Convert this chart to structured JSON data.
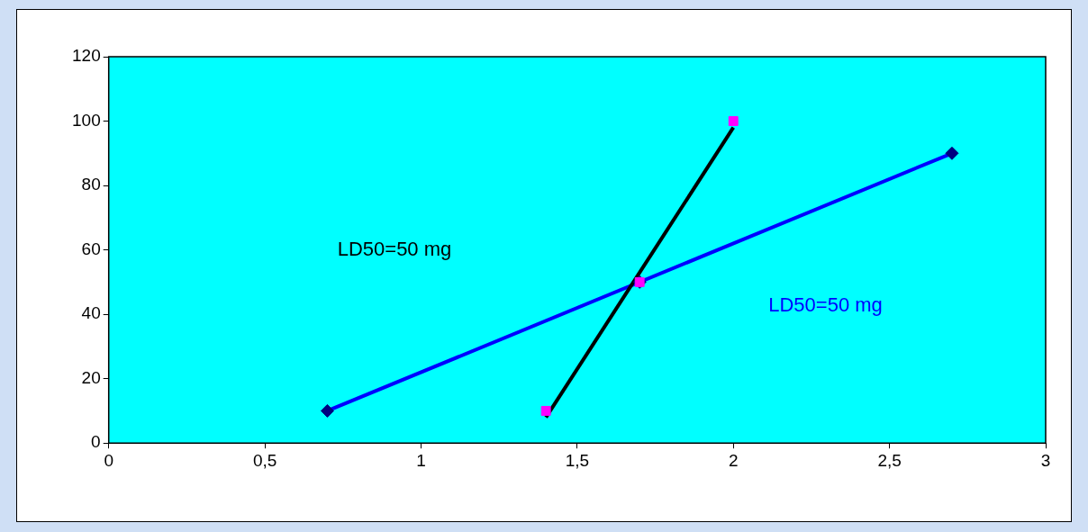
{
  "chart_data": {
    "type": "scatter",
    "xlim": [
      0,
      3
    ],
    "ylim": [
      0,
      120
    ],
    "xticks": [
      0,
      {
        "value": 0.5,
        "label": "0,5"
      },
      1,
      {
        "value": 1.5,
        "label": "1,5"
      },
      2,
      {
        "value": 2.5,
        "label": "2,5"
      },
      3
    ],
    "yticks": [
      0,
      20,
      40,
      60,
      80,
      100,
      120
    ],
    "grid": false,
    "legend": false,
    "series": [
      {
        "type": "scatter",
        "marker": "square",
        "color": "#ff00ff",
        "x": [
          1.4,
          1.7,
          2
        ],
        "values": [
          10,
          50,
          100
        ]
      },
      {
        "type": "scatter",
        "marker": "diamond",
        "color": "#000080",
        "x": [
          0.7,
          1.7,
          2.7
        ],
        "values": [
          10,
          50,
          90
        ]
      },
      {
        "type": "line",
        "marker": "none",
        "color": "#000000",
        "x": [
          1.4,
          2
        ],
        "values": [
          8,
          98
        ]
      },
      {
        "type": "line",
        "marker": "none",
        "color": "#0000ff",
        "x": [
          0.7,
          2.7
        ],
        "values": [
          10,
          90
        ]
      }
    ],
    "annotations": [
      "LD50=50 mg",
      "LD50=50 mg"
    ]
  }
}
